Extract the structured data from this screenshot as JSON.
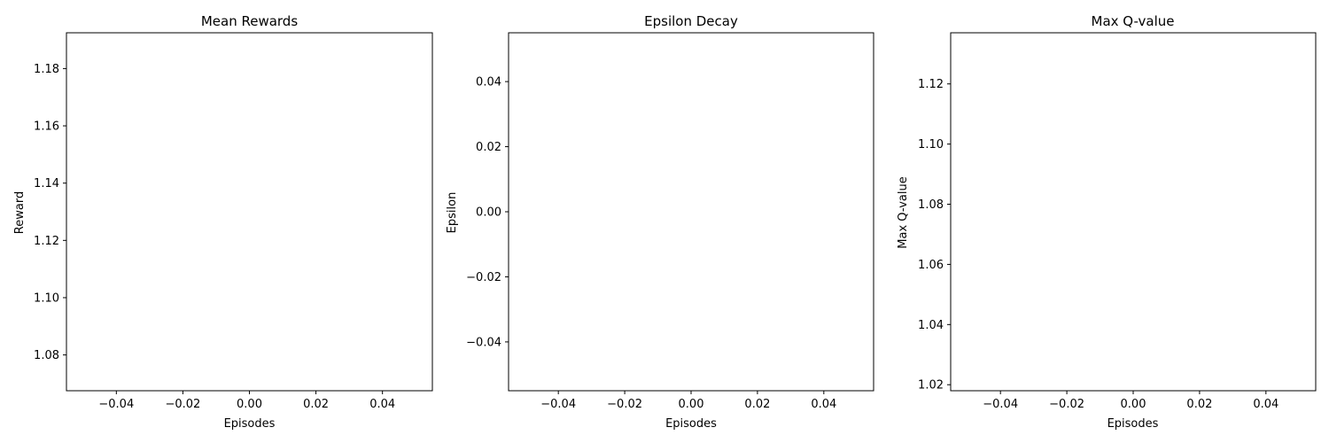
{
  "chart_data": [
    {
      "type": "line",
      "title": "Mean Rewards",
      "xlabel": "Episodes",
      "ylabel": "Reward",
      "xlim": [
        -0.055,
        0.055
      ],
      "ylim": [
        1.0675,
        1.1925
      ],
      "xticks": [
        -0.04,
        -0.02,
        0.0,
        0.02,
        0.04
      ],
      "xtick_labels": [
        "−0.04",
        "−0.02",
        "0.00",
        "0.02",
        "0.04"
      ],
      "yticks": [
        1.08,
        1.1,
        1.12,
        1.14,
        1.16,
        1.18
      ],
      "ytick_labels": [
        "1.08",
        "1.10",
        "1.12",
        "1.14",
        "1.16",
        "1.18"
      ],
      "grid": false,
      "series": []
    },
    {
      "type": "line",
      "title": "Epsilon Decay",
      "xlabel": "Episodes",
      "ylabel": "Epsilon",
      "xlim": [
        -0.055,
        0.055
      ],
      "ylim": [
        -0.055,
        0.055
      ],
      "xticks": [
        -0.04,
        -0.02,
        0.0,
        0.02,
        0.04
      ],
      "xtick_labels": [
        "−0.04",
        "−0.02",
        "0.00",
        "0.02",
        "0.04"
      ],
      "yticks": [
        -0.04,
        -0.02,
        0.0,
        0.02,
        0.04
      ],
      "ytick_labels": [
        "−0.04",
        "−0.02",
        "0.00",
        "0.02",
        "0.04"
      ],
      "grid": false,
      "series": []
    },
    {
      "type": "line",
      "title": "Max Q-value",
      "xlabel": "Episodes",
      "ylabel": "Max Q-value",
      "xlim": [
        -0.055,
        0.055
      ],
      "ylim": [
        1.018,
        1.137
      ],
      "xticks": [
        -0.04,
        -0.02,
        0.0,
        0.02,
        0.04
      ],
      "xtick_labels": [
        "−0.04",
        "−0.02",
        "0.00",
        "0.02",
        "0.04"
      ],
      "yticks": [
        1.02,
        1.04,
        1.06,
        1.08,
        1.1,
        1.12
      ],
      "ytick_labels": [
        "1.02",
        "1.04",
        "1.06",
        "1.08",
        "1.10",
        "1.12"
      ],
      "grid": false,
      "series": []
    }
  ]
}
